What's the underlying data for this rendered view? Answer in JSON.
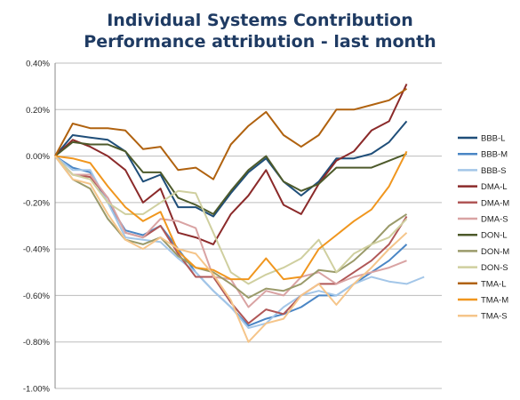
{
  "chart_data": {
    "type": "line",
    "title": "Individual Systems Contribution",
    "subtitle": "Performance attribution - last month",
    "xlabel": "",
    "ylabel": "",
    "ylim": [
      -1.0,
      0.4
    ],
    "yticks": [
      0.4,
      0.2,
      0.0,
      -0.2,
      -0.4,
      -0.6,
      -0.8,
      -1.0
    ],
    "ytick_labels": [
      "0.40%",
      "0.20%",
      "0.00%",
      "-0.20%",
      "-0.40%",
      "-0.60%",
      "-0.80%",
      "-1.00%"
    ],
    "grid": true,
    "legend_position": "right",
    "x": [
      1,
      2,
      3,
      4,
      5,
      6,
      7,
      8,
      9,
      10,
      11,
      12,
      13,
      14,
      15,
      16,
      17,
      18,
      19,
      20,
      21,
      22,
      23
    ],
    "series": [
      {
        "name": "BBB-L",
        "color": "#1f4e79",
        "values": [
          0.0,
          0.09,
          0.08,
          0.07,
          0.02,
          -0.11,
          -0.08,
          -0.22,
          -0.22,
          -0.26,
          -0.16,
          -0.07,
          -0.01,
          -0.11,
          -0.17,
          -0.11,
          -0.01,
          -0.01,
          0.01,
          0.06,
          0.15,
          null,
          null
        ]
      },
      {
        "name": "BBB-M",
        "color": "#4a86c5",
        "values": [
          0.0,
          -0.05,
          -0.07,
          -0.2,
          -0.32,
          -0.34,
          -0.3,
          -0.4,
          -0.5,
          -0.58,
          -0.65,
          -0.73,
          -0.7,
          -0.68,
          -0.65,
          -0.6,
          -0.6,
          -0.55,
          -0.5,
          -0.45,
          -0.38,
          null,
          null
        ]
      },
      {
        "name": "BBB-S",
        "color": "#a3c6e8",
        "values": [
          0.0,
          -0.06,
          -0.06,
          -0.2,
          -0.35,
          -0.36,
          -0.37,
          -0.44,
          -0.5,
          -0.58,
          -0.65,
          -0.74,
          -0.72,
          -0.65,
          -0.6,
          -0.58,
          -0.6,
          -0.55,
          -0.52,
          -0.54,
          -0.55,
          -0.52,
          null
        ]
      },
      {
        "name": "DMA-L",
        "color": "#8b2a2a",
        "values": [
          0.0,
          0.07,
          0.04,
          0.0,
          -0.06,
          -0.2,
          -0.14,
          -0.33,
          -0.35,
          -0.38,
          -0.25,
          -0.17,
          -0.06,
          -0.21,
          -0.25,
          -0.12,
          -0.02,
          0.02,
          0.11,
          0.15,
          0.31,
          null,
          null
        ]
      },
      {
        "name": "DMA-M",
        "color": "#b05757",
        "values": [
          0.0,
          -0.08,
          -0.09,
          -0.18,
          -0.33,
          -0.35,
          -0.3,
          -0.42,
          -0.52,
          -0.52,
          -0.63,
          -0.72,
          -0.66,
          -0.68,
          -0.6,
          -0.55,
          -0.55,
          -0.5,
          -0.45,
          -0.38,
          -0.26,
          null,
          null
        ]
      },
      {
        "name": "DMA-S",
        "color": "#d9a3a3",
        "values": [
          0.0,
          -0.08,
          -0.08,
          -0.18,
          -0.33,
          -0.35,
          -0.27,
          -0.28,
          -0.31,
          -0.52,
          -0.53,
          -0.65,
          -0.58,
          -0.6,
          -0.52,
          -0.5,
          -0.55,
          -0.52,
          -0.5,
          -0.48,
          -0.45,
          null,
          null
        ]
      },
      {
        "name": "DON-L",
        "color": "#4d5a2b",
        "values": [
          0.0,
          0.06,
          0.05,
          0.05,
          0.02,
          -0.07,
          -0.07,
          -0.18,
          -0.21,
          -0.25,
          -0.15,
          -0.06,
          0.0,
          -0.11,
          -0.15,
          -0.12,
          -0.05,
          -0.05,
          -0.05,
          -0.02,
          0.01,
          null,
          null
        ]
      },
      {
        "name": "DON-M",
        "color": "#9a9a6a",
        "values": [
          0.0,
          -0.1,
          -0.14,
          -0.27,
          -0.36,
          -0.38,
          -0.35,
          -0.43,
          -0.48,
          -0.5,
          -0.55,
          -0.61,
          -0.57,
          -0.58,
          -0.55,
          -0.49,
          -0.5,
          -0.45,
          -0.38,
          -0.3,
          -0.25,
          null,
          null
        ]
      },
      {
        "name": "DON-S",
        "color": "#cfcf9f",
        "values": [
          0.0,
          -0.08,
          -0.1,
          -0.2,
          -0.25,
          -0.25,
          -0.2,
          -0.15,
          -0.16,
          -0.33,
          -0.5,
          -0.55,
          -0.51,
          -0.48,
          -0.44,
          -0.36,
          -0.5,
          -0.42,
          -0.38,
          -0.35,
          -0.27,
          null,
          null
        ]
      },
      {
        "name": "TMA-L",
        "color": "#b0620f",
        "values": [
          0.0,
          0.14,
          0.12,
          0.12,
          0.11,
          0.03,
          0.04,
          -0.06,
          -0.05,
          -0.1,
          0.05,
          0.13,
          0.19,
          0.09,
          0.04,
          0.09,
          0.2,
          0.2,
          0.22,
          0.24,
          0.29,
          null,
          null
        ]
      },
      {
        "name": "TMA-M",
        "color": "#f0961e",
        "values": [
          0.0,
          -0.01,
          -0.03,
          -0.13,
          -0.22,
          -0.28,
          -0.24,
          -0.41,
          -0.48,
          -0.49,
          -0.53,
          -0.53,
          -0.44,
          -0.53,
          -0.52,
          -0.4,
          -0.34,
          -0.28,
          -0.23,
          -0.13,
          0.02,
          null,
          null
        ]
      },
      {
        "name": "TMA-S",
        "color": "#f5c58a",
        "values": [
          0.0,
          -0.1,
          -0.12,
          -0.25,
          -0.36,
          -0.4,
          -0.35,
          -0.4,
          -0.42,
          -0.51,
          -0.62,
          -0.8,
          -0.72,
          -0.7,
          -0.6,
          -0.55,
          -0.64,
          -0.55,
          -0.48,
          -0.4,
          -0.33,
          null,
          null
        ]
      }
    ]
  }
}
